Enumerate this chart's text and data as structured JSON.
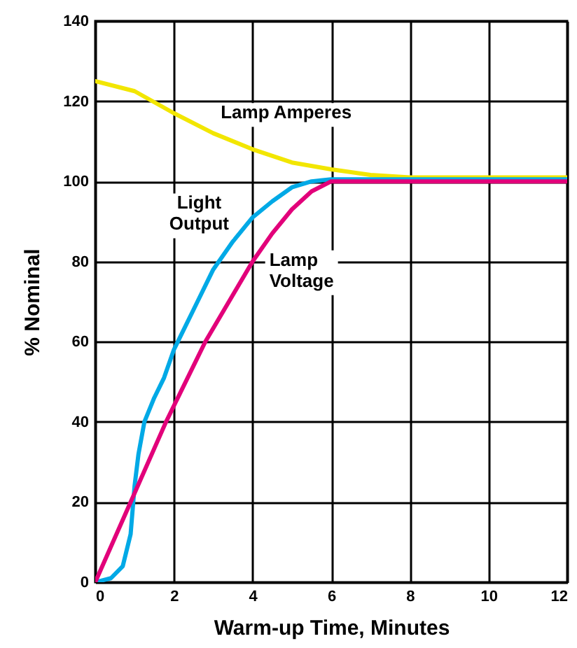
{
  "chart_data": {
    "type": "line",
    "xlabel": "Warm-up Time, Minutes",
    "ylabel": "% Nominal",
    "xlim": [
      0,
      12
    ],
    "xticks": [
      0,
      2,
      4,
      6,
      8,
      10,
      12
    ],
    "ylim": [
      0,
      140
    ],
    "yticks": [
      0,
      20,
      40,
      60,
      80,
      100,
      120,
      140
    ],
    "grid": true,
    "marker": "none",
    "line_style": "solid",
    "series": [
      {
        "name": "Lamp Amperes",
        "color": "#f2e600",
        "x": [
          0,
          1,
          2,
          3,
          4,
          5,
          6,
          7,
          8,
          10,
          12
        ],
        "values": [
          125,
          122.5,
          117,
          112,
          108,
          104.7,
          103,
          101.6,
          101,
          101,
          101
        ]
      },
      {
        "name": "Light Output",
        "color": "#00a9e6",
        "x": [
          0,
          0.4,
          0.7,
          0.9,
          1.0,
          1.1,
          1.25,
          1.5,
          1.75,
          2,
          2.5,
          3,
          3.5,
          4,
          4.5,
          5,
          5.5,
          6,
          12
        ],
        "values": [
          0,
          1,
          4,
          12,
          24,
          32,
          40,
          46,
          51,
          58,
          68,
          78,
          85,
          91,
          95,
          98.5,
          100,
          100.5,
          100.5
        ]
      },
      {
        "name": "Lamp Voltage",
        "color": "#e2007a",
        "x": [
          0,
          0.9,
          1.8,
          2.8,
          4,
          4.5,
          5,
          5.5,
          6,
          12
        ],
        "values": [
          0,
          20,
          40,
          60,
          80,
          87,
          93,
          97.5,
          100,
          100
        ]
      }
    ]
  }
}
